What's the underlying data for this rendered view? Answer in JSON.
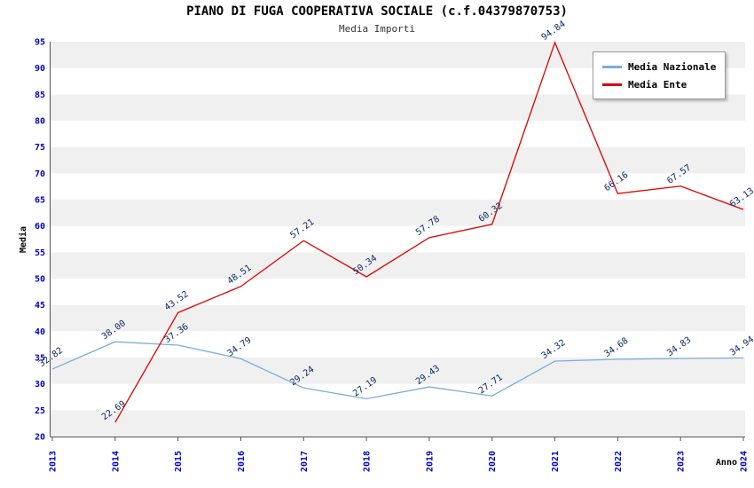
{
  "title": "PIANO DI FUGA COOPERATIVA SOCIALE (c.f.04379870753)",
  "subtitle": "Media Importi",
  "legend": {
    "items": [
      {
        "label": "Media Nazionale",
        "color": "#7aaed6"
      },
      {
        "label": "Media Ente",
        "color": "#dd0000"
      }
    ]
  },
  "chart_data": {
    "type": "line",
    "x_categories": [
      "2013",
      "2014",
      "2015",
      "2016",
      "2017",
      "2018",
      "2019",
      "2020",
      "2021",
      "2022",
      "2023",
      "2024"
    ],
    "series": [
      {
        "name": "Media Nazionale",
        "color": "#7aaed6",
        "values": [
          32.82,
          38.0,
          37.36,
          34.79,
          29.24,
          27.19,
          29.43,
          27.71,
          34.32,
          34.68,
          34.83,
          34.94
        ]
      },
      {
        "name": "Media Ente",
        "color": "#dd0000",
        "values": [
          null,
          22.69,
          43.52,
          48.51,
          57.21,
          50.34,
          57.78,
          60.32,
          94.84,
          66.16,
          67.57,
          63.13
        ]
      }
    ],
    "xlabel": "Anno",
    "ylabel": "Media",
    "ylim": [
      20,
      95
    ],
    "ytick_step": 5,
    "grid": "banded-horizontal",
    "legend_position": "top-right",
    "band_color": "#f0f0f0",
    "tick_color": "#0000cc",
    "data_label_color": "#0d2a63"
  }
}
